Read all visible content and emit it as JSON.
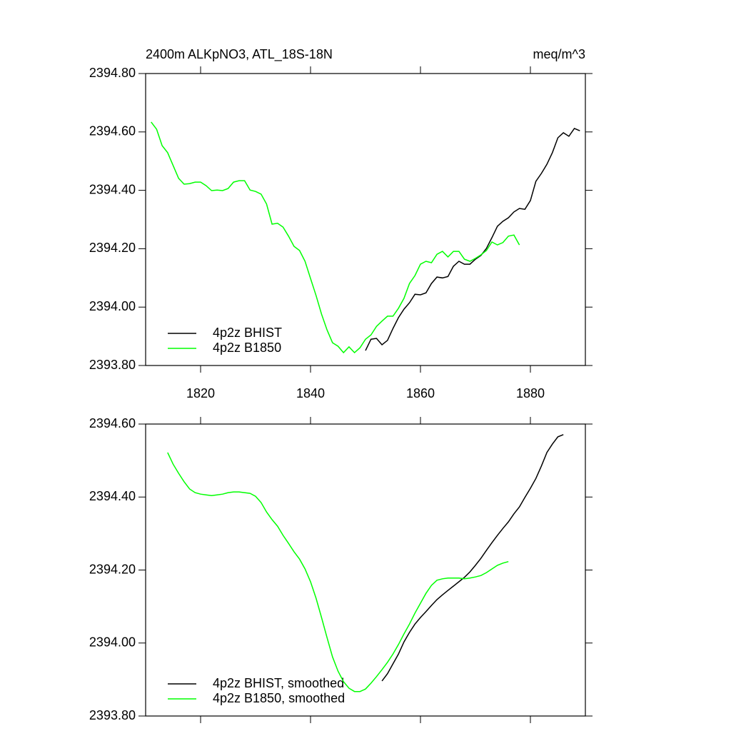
{
  "chart_data": [
    {
      "type": "line",
      "title": "2400m ALKpNO3, ATL_18S-18N",
      "units": "meq/m^3",
      "xlim": [
        1810,
        1890
      ],
      "xticks": [
        1820,
        1840,
        1860,
        1880
      ],
      "ylim": [
        2393.8,
        2394.8
      ],
      "yticks": [
        {
          "value": 2393.8,
          "label": "2393.80"
        },
        {
          "value": 2394.0,
          "label": "2394.00"
        },
        {
          "value": 2394.2,
          "label": "2394.20"
        },
        {
          "value": 2394.4,
          "label": "2394.40"
        },
        {
          "value": 2394.6,
          "label": "2394.60"
        },
        {
          "value": 2394.8,
          "label": "2394.80"
        }
      ],
      "series": [
        {
          "name": "4p2z BHIST",
          "color": "#000000",
          "x": [
            1850,
            1851,
            1852,
            1853,
            1854,
            1855,
            1856,
            1857,
            1858,
            1859,
            1860,
            1861,
            1862,
            1863,
            1864,
            1865,
            1866,
            1867,
            1868,
            1869,
            1870,
            1871,
            1872,
            1873,
            1874,
            1875,
            1876,
            1877,
            1878,
            1879,
            1880,
            1881,
            1882,
            1883,
            1884,
            1885,
            1886,
            1887,
            1888,
            1889
          ],
          "values": [
            2393.851,
            2393.89,
            2393.893,
            2393.871,
            2393.886,
            2393.927,
            2393.964,
            2393.993,
            2394.015,
            2394.044,
            2394.042,
            2394.049,
            2394.081,
            2394.103,
            2394.1,
            2394.105,
            2394.14,
            2394.157,
            2394.147,
            2394.147,
            2394.164,
            2394.177,
            2394.201,
            2394.238,
            2394.277,
            2394.294,
            2394.306,
            2394.326,
            2394.338,
            2394.335,
            2394.365,
            2394.431,
            2394.458,
            2394.489,
            2394.529,
            2394.58,
            2394.597,
            2394.585,
            2394.612,
            2394.604
          ]
        },
        {
          "name": "4p2z B1850",
          "color": "#00ff00",
          "x": [
            1811,
            1812,
            1813,
            1814,
            1815,
            1816,
            1817,
            1818,
            1819,
            1820,
            1821,
            1822,
            1823,
            1824,
            1825,
            1826,
            1827,
            1828,
            1829,
            1830,
            1831,
            1832,
            1833,
            1834,
            1835,
            1836,
            1837,
            1838,
            1839,
            1840,
            1841,
            1842,
            1843,
            1844,
            1845,
            1846,
            1847,
            1848,
            1849,
            1850,
            1851,
            1852,
            1853,
            1854,
            1855,
            1856,
            1857,
            1858,
            1859,
            1860,
            1861,
            1862,
            1863,
            1864,
            1865,
            1866,
            1867,
            1868,
            1869,
            1870,
            1871,
            1872,
            1873,
            1874,
            1875,
            1876,
            1877,
            1878
          ],
          "values": [
            2394.634,
            2394.609,
            2394.553,
            2394.529,
            2394.485,
            2394.441,
            2394.421,
            2394.423,
            2394.428,
            2394.428,
            2394.416,
            2394.399,
            2394.401,
            2394.399,
            2394.406,
            2394.428,
            2394.433,
            2394.433,
            2394.401,
            2394.396,
            2394.387,
            2394.353,
            2394.284,
            2394.287,
            2394.274,
            2394.243,
            2394.208,
            2394.194,
            2394.157,
            2394.098,
            2394.04,
            2393.976,
            2393.922,
            2393.878,
            2393.866,
            2393.844,
            2393.864,
            2393.844,
            2393.861,
            2393.89,
            2393.905,
            2393.934,
            2393.952,
            2393.969,
            2393.969,
            2393.996,
            2394.03,
            2394.081,
            2394.108,
            2394.147,
            2394.157,
            2394.152,
            2394.181,
            2394.191,
            2394.172,
            2394.191,
            2394.191,
            2394.164,
            2394.157,
            2394.167,
            2394.179,
            2394.194,
            2394.223,
            2394.213,
            2394.221,
            2394.243,
            2394.247,
            2394.213
          ]
        }
      ]
    },
    {
      "type": "line",
      "xlim": [
        1810,
        1890
      ],
      "xticks": [
        1820,
        1840,
        1860,
        1880
      ],
      "ylim": [
        2393.8,
        2394.6
      ],
      "yticks": [
        {
          "value": 2393.8,
          "label": "2393.80"
        },
        {
          "value": 2394.0,
          "label": "2394.00"
        },
        {
          "value": 2394.2,
          "label": "2394.20"
        },
        {
          "value": 2394.4,
          "label": "2394.40"
        },
        {
          "value": 2394.6,
          "label": "2394.60"
        }
      ],
      "series": [
        {
          "name": "4p2z BHIST, smoothed",
          "color": "#000000",
          "x": [
            1853,
            1854,
            1855,
            1856,
            1857,
            1858,
            1859,
            1860,
            1861,
            1862,
            1863,
            1864,
            1865,
            1866,
            1867,
            1868,
            1869,
            1870,
            1871,
            1872,
            1873,
            1874,
            1875,
            1876,
            1877,
            1878,
            1879,
            1880,
            1881,
            1882,
            1883,
            1884,
            1885,
            1886
          ],
          "values": [
            2393.896,
            2393.916,
            2393.943,
            2393.97,
            2394.003,
            2394.029,
            2394.052,
            2394.07,
            2394.086,
            2394.103,
            2394.119,
            2394.132,
            2394.144,
            2394.156,
            2394.168,
            2394.18,
            2394.195,
            2394.213,
            2394.232,
            2394.254,
            2394.275,
            2394.295,
            2394.314,
            2394.332,
            2394.354,
            2394.373,
            2394.399,
            2394.424,
            2394.451,
            2394.485,
            2394.522,
            2394.545,
            2394.565,
            2394.571
          ]
        },
        {
          "name": "4p2z B1850, smoothed",
          "color": "#00ff00",
          "x": [
            1814,
            1815,
            1816,
            1817,
            1818,
            1819,
            1820,
            1821,
            1822,
            1823,
            1824,
            1825,
            1826,
            1827,
            1828,
            1829,
            1830,
            1831,
            1832,
            1833,
            1834,
            1835,
            1836,
            1837,
            1838,
            1839,
            1840,
            1841,
            1842,
            1843,
            1844,
            1845,
            1846,
            1847,
            1848,
            1849,
            1850,
            1851,
            1852,
            1853,
            1854,
            1855,
            1856,
            1857,
            1858,
            1859,
            1860,
            1861,
            1862,
            1863,
            1864,
            1865,
            1866,
            1867,
            1868,
            1869,
            1870,
            1871,
            1872,
            1873,
            1874,
            1875,
            1876
          ],
          "values": [
            2394.522,
            2394.49,
            2394.465,
            2394.442,
            2394.422,
            2394.412,
            2394.408,
            2394.406,
            2394.404,
            2394.406,
            2394.408,
            2394.412,
            2394.414,
            2394.414,
            2394.412,
            2394.41,
            2394.402,
            2394.385,
            2394.359,
            2394.338,
            2394.32,
            2394.295,
            2394.273,
            2394.25,
            2394.23,
            2394.203,
            2394.168,
            2394.123,
            2394.07,
            2394.015,
            2393.962,
            2393.923,
            2393.894,
            2393.876,
            2393.867,
            2393.867,
            2393.874,
            2393.89,
            2393.908,
            2393.927,
            2393.947,
            2393.97,
            2393.996,
            2394.025,
            2394.052,
            2394.082,
            2394.109,
            2394.136,
            2394.158,
            2394.172,
            2394.176,
            2394.178,
            2394.178,
            2394.178,
            2394.176,
            2394.178,
            2394.181,
            2394.185,
            2394.193,
            2394.203,
            2394.213,
            2394.219,
            2394.223
          ]
        }
      ]
    }
  ]
}
